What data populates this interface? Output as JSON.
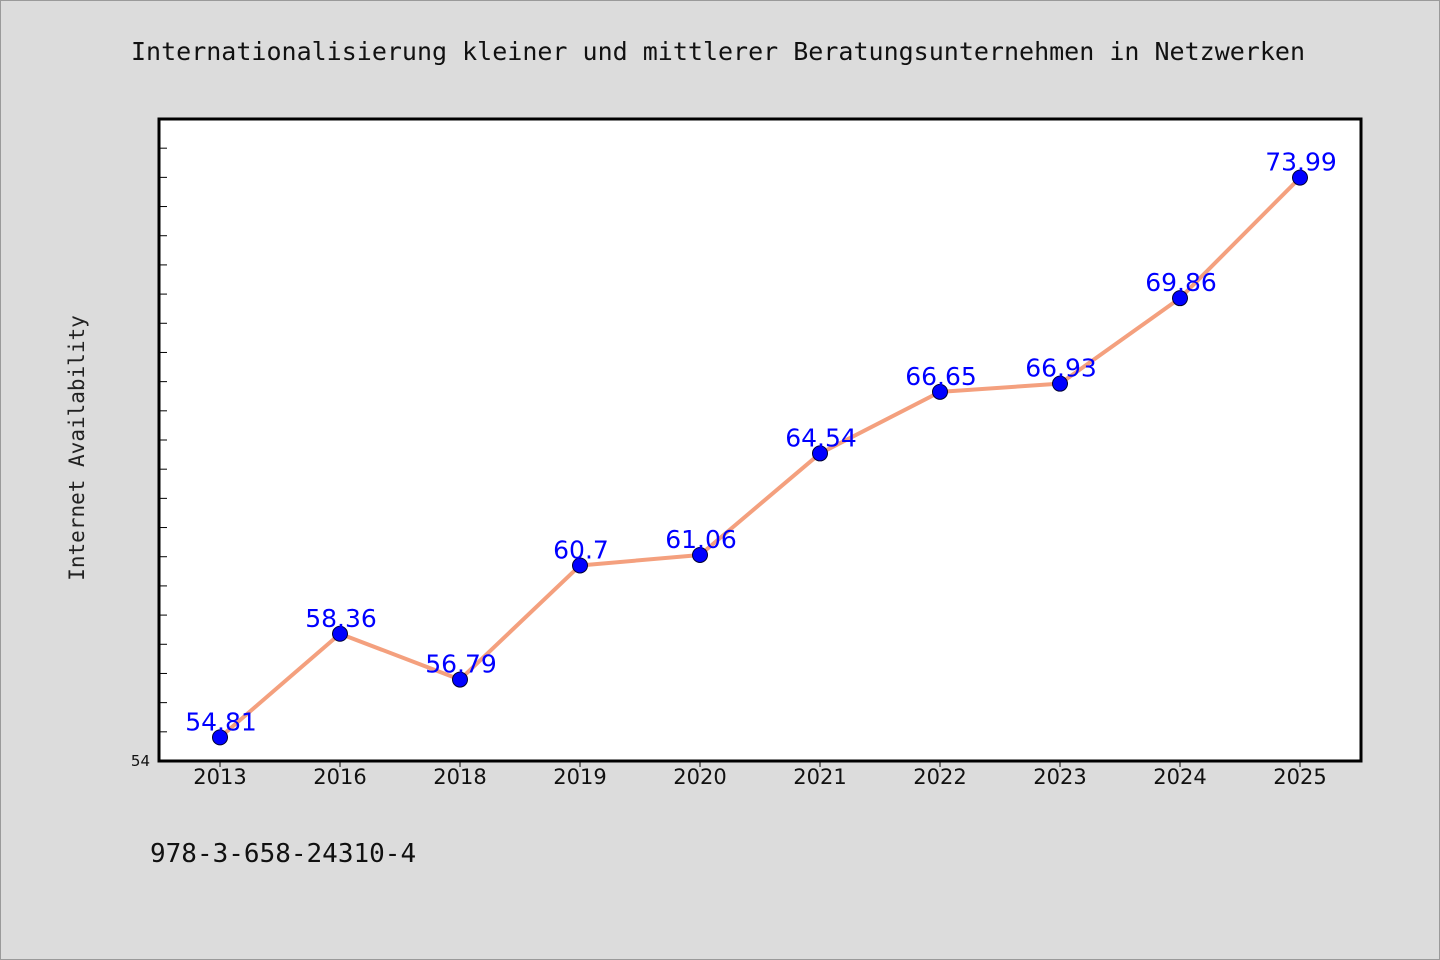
{
  "chart_data": {
    "type": "line",
    "title": "Internationalisierung kleiner und mittlerer Beratungsunternehmen in Netzwerken",
    "xlabel": "",
    "ylabel": "Internet Availability",
    "categories": [
      "2013",
      "2016",
      "2018",
      "2019",
      "2020",
      "2021",
      "2022",
      "2023",
      "2024",
      "2025"
    ],
    "series": [
      {
        "values": [
          54.81,
          58.36,
          56.79,
          60.7,
          61.06,
          64.54,
          66.65,
          66.93,
          69.86,
          73.99
        ],
        "line_color": "#f4a07e",
        "marker_color": "#0000ff"
      }
    ],
    "ylim": [
      54,
      76
    ],
    "ytick_labels": [
      "54"
    ],
    "grid": false,
    "data_labels": true,
    "data_label_color": "#0000ff"
  },
  "footer": {
    "isbn": "978-3-658-24310-4"
  }
}
